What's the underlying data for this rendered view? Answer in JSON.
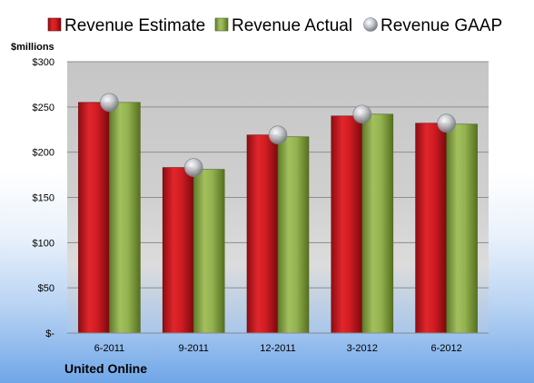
{
  "chart_data": {
    "type": "bar",
    "categories": [
      "6-2011",
      "9-2011",
      "12-2011",
      "3-2012",
      "6-2012"
    ],
    "series": [
      {
        "name": "Revenue Estimate",
        "kind": "bar",
        "color": "#c8141a",
        "values": [
          255,
          183,
          219,
          240,
          232
        ]
      },
      {
        "name": "Revenue Actual",
        "kind": "bar",
        "color": "#8aa84a",
        "values": [
          255,
          181,
          217,
          242,
          231
        ]
      },
      {
        "name": "Revenue GAAP",
        "kind": "marker",
        "color": "#b8bcc4",
        "values": [
          255,
          183,
          219,
          242,
          232
        ]
      }
    ],
    "ylim": [
      0,
      300
    ],
    "yticks": [
      0,
      50,
      100,
      150,
      200,
      250,
      300
    ],
    "ytick_labels": [
      "$-",
      "$50",
      "$100",
      "$150",
      "$200",
      "$250",
      "$300"
    ],
    "ylabel": "$millions",
    "legend_position": "top",
    "grid": true
  },
  "footer": {
    "company": "United Online"
  }
}
